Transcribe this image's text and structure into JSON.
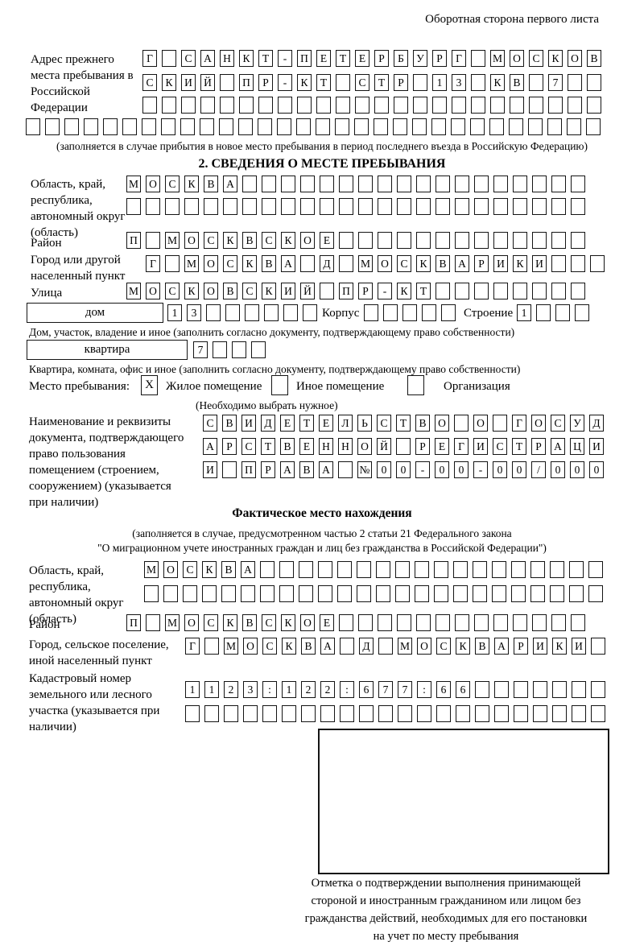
{
  "page": {
    "header": "Оборотная сторона первого листа"
  },
  "prev_address": {
    "label": "Адрес прежнего места пребывания в Российской Федерации",
    "row1": [
      "Г",
      "",
      "С",
      "А",
      "Н",
      "К",
      "Т",
      "-",
      "П",
      "Е",
      "Т",
      "Е",
      "Р",
      "Б",
      "У",
      "Р",
      "Г",
      "",
      "М",
      "О",
      "С",
      "К",
      "О",
      "В"
    ],
    "row2": [
      "С",
      "К",
      "И",
      "Й",
      "",
      "П",
      "Р",
      "-",
      "К",
      "Т",
      "",
      "С",
      "Т",
      "Р",
      "",
      "1",
      "3",
      "",
      "К",
      "В",
      "",
      "7",
      "",
      ""
    ],
    "row3": [
      "",
      "",
      "",
      "",
      "",
      "",
      "",
      "",
      "",
      "",
      "",
      "",
      "",
      "",
      "",
      "",
      "",
      "",
      "",
      "",
      "",
      "",
      "",
      ""
    ],
    "row4": [
      "",
      "",
      "",
      "",
      "",
      "",
      "",
      "",
      "",
      "",
      "",
      "",
      "",
      "",
      "",
      "",
      "",
      "",
      "",
      "",
      "",
      "",
      "",
      "",
      "",
      "",
      "",
      "",
      "",
      ""
    ],
    "note": "(заполняется в случае прибытия в новое место пребывания в период последнего въезда в Российскую Федерацию)"
  },
  "section2": {
    "title": "2. СВЕДЕНИЯ О МЕСТЕ ПРЕБЫВАНИЯ",
    "region_label": "Область, край, республика, автономный округ (область)",
    "region_row1": [
      "М",
      "О",
      "С",
      "К",
      "В",
      "А",
      "",
      "",
      "",
      "",
      "",
      "",
      "",
      "",
      "",
      "",
      "",
      "",
      "",
      "",
      "",
      "",
      "",
      ""
    ],
    "region_row2": [
      "",
      "",
      "",
      "",
      "",
      "",
      "",
      "",
      "",
      "",
      "",
      "",
      "",
      "",
      "",
      "",
      "",
      "",
      "",
      "",
      "",
      "",
      "",
      ""
    ],
    "district_label": "Район",
    "district_row": [
      "П",
      "",
      "М",
      "О",
      "С",
      "К",
      "В",
      "С",
      "К",
      "О",
      "Е",
      "",
      "",
      "",
      "",
      "",
      "",
      "",
      "",
      "",
      "",
      "",
      "",
      ""
    ],
    "city_label": "Город или другой населенный пункт",
    "city_row": [
      "Г",
      "",
      "М",
      "О",
      "С",
      "К",
      "В",
      "А",
      "",
      "Д",
      "",
      "М",
      "О",
      "С",
      "К",
      "В",
      "А",
      "Р",
      "И",
      "К",
      "И",
      "",
      "",
      ""
    ],
    "street_label": "Улица",
    "street_row": [
      "М",
      "О",
      "С",
      "К",
      "О",
      "В",
      "С",
      "К",
      "И",
      "Й",
      "",
      "П",
      "Р",
      "-",
      "К",
      "Т",
      "",
      "",
      "",
      "",
      "",
      "",
      "",
      ""
    ],
    "house_label": "дом",
    "house_row": [
      "1",
      "3",
      "",
      "",
      "",
      "",
      "",
      ""
    ],
    "korpus_label": "Корпус",
    "korpus_row": [
      "",
      "",
      "",
      "",
      ""
    ],
    "stroenie_label": "Строение",
    "stroenie_row": [
      "1",
      "",
      "",
      ""
    ],
    "house_note": "Дом, участок, владение и иное (заполнить согласно документу, подтверждающему право собственности)",
    "apartment_label": "квартира",
    "apartment_row": [
      "7",
      "",
      "",
      ""
    ],
    "apartment_note": "Квартира, комната, офис и иное (заполнить согласно документу, подтверждающему право собственности)",
    "stay_label": "Место пребывания:",
    "stay_options": [
      {
        "label": "Жилое помещение",
        "checked": true,
        "mark": "X"
      },
      {
        "label": "Иное помещение",
        "checked": false,
        "mark": ""
      },
      {
        "label": "Организация",
        "checked": false,
        "mark": ""
      }
    ],
    "stay_note": "(Необходимо выбрать нужное)",
    "doc_label": "Наименование и реквизиты документа, подтверждающего право пользования помещением (строением, сооружением) (указывается при наличии)",
    "doc_row1": [
      "С",
      "В",
      "И",
      "Д",
      "Е",
      "Т",
      "Е",
      "Л",
      "Ь",
      "С",
      "Т",
      "В",
      "О",
      "",
      "О",
      "",
      "Г",
      "О",
      "С",
      "У",
      "Д"
    ],
    "doc_row2": [
      "А",
      "Р",
      "С",
      "Т",
      "В",
      "Е",
      "Н",
      "Н",
      "О",
      "Й",
      "",
      "Р",
      "Е",
      "Г",
      "И",
      "С",
      "Т",
      "Р",
      "А",
      "Ц",
      "И"
    ],
    "doc_row3": [
      "И",
      "",
      "П",
      "Р",
      "А",
      "В",
      "А",
      "",
      "№",
      "0",
      "0",
      "-",
      "0",
      "0",
      "-",
      "0",
      "0",
      "/",
      "0",
      "0",
      "0"
    ]
  },
  "actual_location": {
    "title": "Фактическое место нахождения",
    "note_lines": [
      "(заполняется в случае, предусмотренном частью 2 статьи 21 Федерального закона",
      "\"О миграционном учете иностранных граждан и лиц без гражданства в Российской Федерации\")"
    ],
    "region_label": "Область, край, республика, автономный округ (область)",
    "region_row1": [
      "М",
      "О",
      "С",
      "К",
      "В",
      "А",
      "",
      "",
      "",
      "",
      "",
      "",
      "",
      "",
      "",
      "",
      "",
      "",
      "",
      "",
      "",
      "",
      "",
      ""
    ],
    "region_row2": [
      "",
      "",
      "",
      "",
      "",
      "",
      "",
      "",
      "",
      "",
      "",
      "",
      "",
      "",
      "",
      "",
      "",
      "",
      "",
      "",
      "",
      "",
      "",
      ""
    ],
    "district_label": "Район",
    "district_row": [
      "П",
      "",
      "М",
      "О",
      "С",
      "К",
      "В",
      "С",
      "К",
      "О",
      "Е",
      "",
      "",
      "",
      "",
      "",
      "",
      "",
      "",
      "",
      "",
      "",
      "",
      ""
    ],
    "city_label": "Город, сельское поселение, иной населенный пункт",
    "city_row": [
      "Г",
      "",
      "М",
      "О",
      "С",
      "К",
      "В",
      "А",
      "",
      "Д",
      "",
      "М",
      "О",
      "С",
      "К",
      "В",
      "А",
      "Р",
      "И",
      "К",
      "И",
      ""
    ],
    "cadastre_label": "Кадастровый номер земельного или лесного участка (указывается при наличии)",
    "cadastre_row1": [
      "1",
      "1",
      "2",
      "3",
      ":",
      "1",
      "2",
      "2",
      ":",
      "6",
      "7",
      "7",
      ":",
      "6",
      "6",
      "",
      "",
      "",
      "",
      "",
      "",
      ""
    ],
    "cadastre_row2": [
      "",
      "",
      "",
      "",
      "",
      "",
      "",
      "",
      "",
      "",
      "",
      "",
      "",
      "",
      "",
      "",
      "",
      "",
      "",
      "",
      "",
      ""
    ],
    "stamp_note_lines": [
      "Отметка о подтверждении выполнения принимающей",
      "стороной и иностранным гражданином или лицом без",
      "гражданства действий, необходимых для его постановки",
      "на учет по месту пребывания"
    ]
  }
}
